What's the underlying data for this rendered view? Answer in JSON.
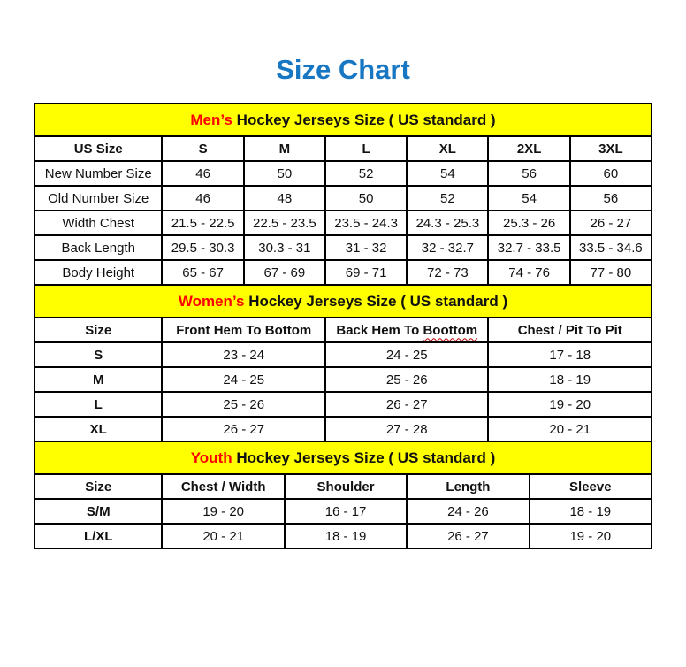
{
  "page": {
    "title": "Size Chart"
  },
  "colors": {
    "title-blue": "#1777C2",
    "banner-yellow": "#FFFF00",
    "accent-red": "#FF0000",
    "border-black": "#000000",
    "squiggle-red": "#C00000"
  },
  "sections": [
    {
      "id": "mens",
      "banner": {
        "highlight": "Men’s",
        "rest": "Hockey Jerseys Size ( US standard )"
      },
      "table": {
        "headers": [
          "US Size",
          "S",
          "M",
          "L",
          "XL",
          "2XL",
          "3XL"
        ],
        "rows": [
          [
            "New Number Size",
            "46",
            "50",
            "52",
            "54",
            "56",
            "60"
          ],
          [
            "Old Number Size",
            "46",
            "48",
            "50",
            "52",
            "54",
            "56"
          ],
          [
            "Width Chest",
            "21.5 - 22.5",
            "22.5 - 23.5",
            "23.5 - 24.3",
            "24.3 - 25.3",
            "25.3 - 26",
            "26 - 27"
          ],
          [
            "Back Length",
            "29.5 - 30.3",
            "30.3 - 31",
            "31 - 32",
            "32 - 32.7",
            "32.7 - 33.5",
            "33.5 - 34.6"
          ],
          [
            "Body Height",
            "65 - 67",
            "67 - 69",
            "69 - 71",
            "72 - 73",
            "74 - 76",
            "77 - 80"
          ]
        ]
      }
    },
    {
      "id": "womens",
      "banner": {
        "highlight": "Women’s",
        "rest": "Hockey Jerseys Size ( US standard )"
      },
      "table": {
        "headers": [
          "Size",
          "Front Hem To Bottom",
          "Back Hem To Boottom",
          "Chest / Pit To Pit"
        ],
        "misspelling": {
          "column": 2,
          "prefix": "Back Hem To",
          "word": "Boottom"
        },
        "rows": [
          [
            "S",
            "23 - 24",
            "24 - 25",
            "17 - 18"
          ],
          [
            "M",
            "24 - 25",
            "25 - 26",
            "18 - 19"
          ],
          [
            "L",
            "25 - 26",
            "26 - 27",
            "19 - 20"
          ],
          [
            "XL",
            "26 - 27",
            "27 - 28",
            "20 - 21"
          ]
        ]
      }
    },
    {
      "id": "youth",
      "banner": {
        "highlight": "Youth",
        "rest": "Hockey Jerseys Size ( US standard )"
      },
      "table": {
        "headers": [
          "Size",
          "Chest / Width",
          "Shoulder",
          "Length",
          "Sleeve"
        ],
        "rows": [
          [
            "S/M",
            "19 - 20",
            "16 - 17",
            "24 - 26",
            "18 - 19"
          ],
          [
            "L/XL",
            "20 - 21",
            "18 - 19",
            "26 - 27",
            "19 - 20"
          ]
        ]
      }
    }
  ]
}
